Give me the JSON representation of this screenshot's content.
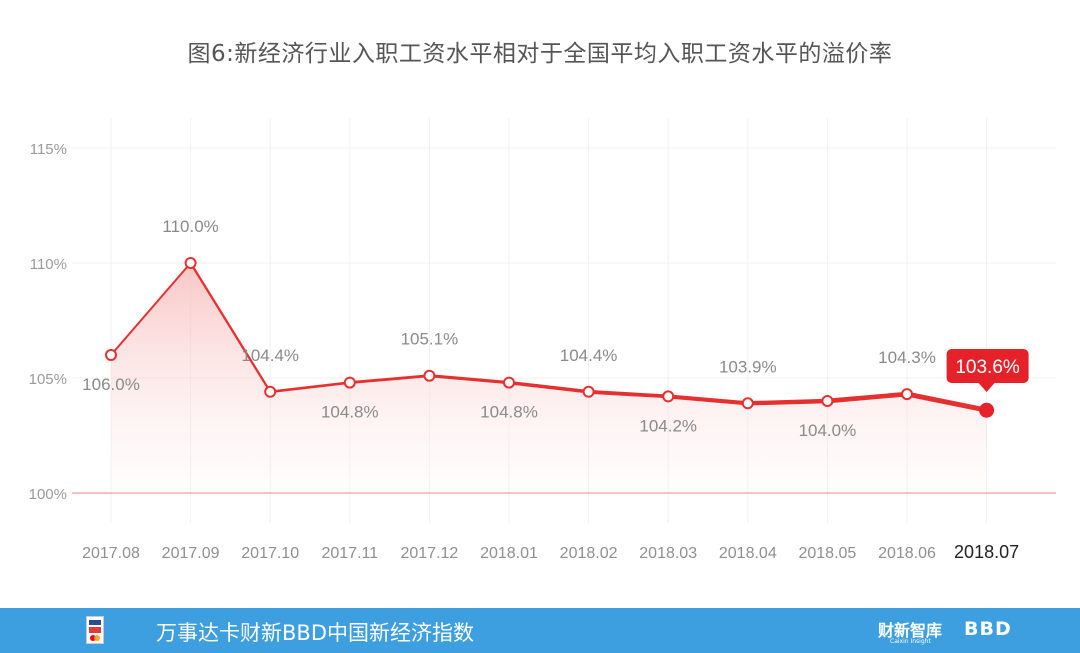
{
  "title": "图6:新经济行业入职工资水平相对于全国平均入职工资水平的溢价率",
  "footer": {
    "text": "万事达卡财新BBD中国新经济指数",
    "brand1": "财新智库",
    "brand1_sub": "Caixin Insight",
    "brand2": "BBD"
  },
  "colors": {
    "line": "#e53030",
    "highlight": "#e5222a",
    "footer_bg": "#3d9ee0",
    "label": "#8a8a8a"
  },
  "chart_data": {
    "type": "line",
    "categories": [
      "2017.08",
      "2017.09",
      "2017.10",
      "2017.11",
      "2017.12",
      "2018.01",
      "2018.02",
      "2018.03",
      "2018.04",
      "2018.05",
      "2018.06",
      "2018.07"
    ],
    "values": [
      106.0,
      110.0,
      104.4,
      104.8,
      105.1,
      104.8,
      104.4,
      104.2,
      103.9,
      104.0,
      104.3,
      103.6
    ],
    "labels": [
      "106.0%",
      "110.0%",
      "104.4%",
      "104.8%",
      "105.1%",
      "104.8%",
      "104.4%",
      "104.2%",
      "103.9%",
      "104.0%",
      "104.3%",
      "103.6%"
    ],
    "label_position": [
      "below",
      "above",
      "above",
      "below",
      "above",
      "below",
      "above",
      "below",
      "above",
      "below",
      "above",
      "callout"
    ],
    "highlight_index": 11,
    "yticks": [
      100,
      105,
      110,
      115
    ],
    "ytick_labels": [
      "100%",
      "105%",
      "110%",
      "115%"
    ],
    "ylim": [
      98.6,
      116.1
    ],
    "grid": true,
    "area_fill": true
  }
}
